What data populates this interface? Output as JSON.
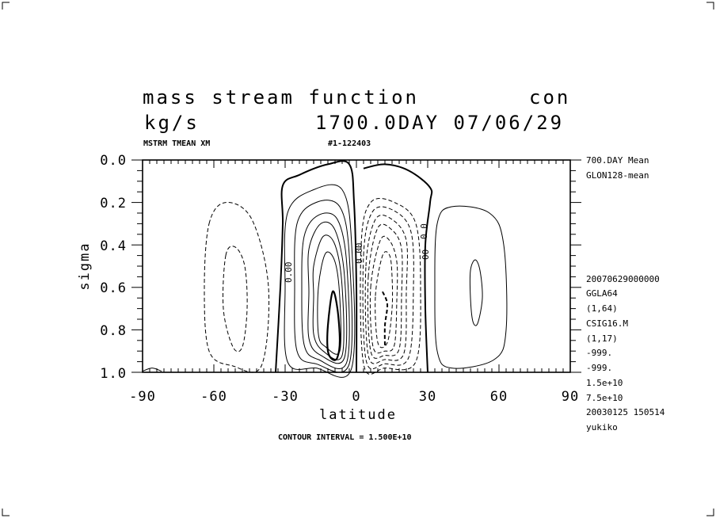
{
  "header": {
    "title_left": "mass stream function",
    "title_right": "con",
    "units": "kg/s",
    "date_line": "1700.0DAY 07/06/29",
    "var_name": "MSTRM TMEAN XM",
    "run_id": "#1-122403"
  },
  "side_info": {
    "top": [
      "700.DAY Mean",
      "GLON128-mean"
    ],
    "bottom": [
      "20070629000000",
      "GGLA64",
      "(1,64)",
      "CSIG16.M",
      "(1,17)",
      "-999.",
      "-999.",
      "1.5e+10",
      "7.5e+10",
      "20030125 150514",
      "yukiko"
    ]
  },
  "footer": {
    "contour_interval": "CONTOUR INTERVAL = 1.500E+10"
  },
  "chart_data": {
    "type": "contour",
    "xlabel": "latitude",
    "ylabel": "sigma",
    "xlim": [
      -90,
      90
    ],
    "ylim": [
      0.0,
      1.0
    ],
    "y_inverted": true,
    "x_ticks": [
      "-90",
      "-60",
      "-30",
      "0",
      "30",
      "60",
      "90"
    ],
    "y_ticks": [
      "0.0",
      "0.2",
      "0.4",
      "0.6",
      "0.8",
      "1.0"
    ],
    "contour_interval": 15000000000.0,
    "contour_labels": [
      {
        "text": "0.00",
        "lat": -29,
        "sigma": 0.5
      },
      {
        "text": "0.00",
        "lat": -0.5,
        "sigma": 0.42
      },
      {
        "text": "0.0",
        "lat": 27,
        "sigma": 0.37
      },
      {
        "text": "00",
        "lat": 28,
        "sigma": 0.5
      }
    ],
    "cells": [
      {
        "name": "southern subtropical cell (clockwise, positive)",
        "center_lat": -10,
        "center_sigma": 0.75,
        "levels": 7
      },
      {
        "name": "northern subtropical cell (negative)",
        "center_lat": 10,
        "center_sigma": 0.75,
        "levels": 7
      },
      {
        "name": "southern mid-latitude cell (negative, dashed)",
        "center_lat": -52,
        "center_sigma": 0.55,
        "levels": 2
      },
      {
        "name": "northern mid-latitude cell (positive)",
        "center_lat": 50,
        "center_sigma": 0.6,
        "levels": 2
      }
    ]
  },
  "colors": {
    "background": "#ffffff",
    "ink": "#000000"
  }
}
